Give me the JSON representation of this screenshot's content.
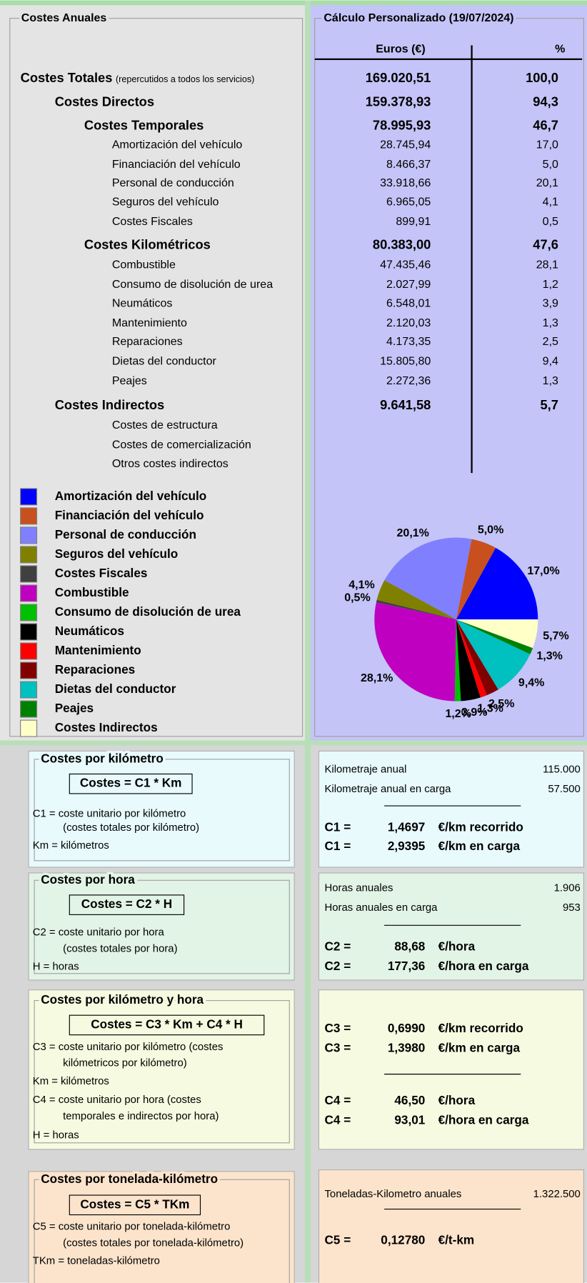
{
  "left_header": "Costes Anuales",
  "right_header": "Cálculo Personalizado (19/07/2024)",
  "table": {
    "columns": [
      "Euros (€)",
      "%"
    ],
    "rows": [
      {
        "label": "Costes Totales",
        "note": "(repercutidos a todos los servicios)",
        "euros": "169.020,51",
        "pct": "100,0"
      },
      {
        "label": "Costes Directos",
        "euros": "159.378,93",
        "pct": "94,3"
      },
      {
        "label": "Costes Temporales",
        "euros": "78.995,93",
        "pct": "46,7"
      },
      {
        "label": "Amortización del vehículo",
        "euros": "28.745,94",
        "pct": "17,0"
      },
      {
        "label": "Financiación del vehículo",
        "euros": "8.466,37",
        "pct": "5,0"
      },
      {
        "label": "Personal de conducción",
        "euros": "33.918,66",
        "pct": "20,1"
      },
      {
        "label": "Seguros del vehículo",
        "euros": "6.965,05",
        "pct": "4,1"
      },
      {
        "label": "Costes Fiscales",
        "euros": "899,91",
        "pct": "0,5"
      },
      {
        "label": "Costes Kilométricos",
        "euros": "80.383,00",
        "pct": "47,6"
      },
      {
        "label": "Combustible",
        "euros": "47.435,46",
        "pct": "28,1"
      },
      {
        "label": "Consumo de disolución de urea",
        "euros": "2.027,99",
        "pct": "1,2"
      },
      {
        "label": "Neumáticos",
        "euros": "6.548,01",
        "pct": "3,9"
      },
      {
        "label": "Mantenimiento",
        "euros": "2.120,03",
        "pct": "1,3"
      },
      {
        "label": "Reparaciones",
        "euros": "4.173,35",
        "pct": "2,5"
      },
      {
        "label": "Dietas del conductor",
        "euros": "15.805,80",
        "pct": "9,4"
      },
      {
        "label": "Peajes",
        "euros": "2.272,36",
        "pct": "1,3"
      },
      {
        "label": "Costes Indirectos",
        "euros": "9.641,58",
        "pct": "5,7"
      },
      {
        "label": "Costes de estructura"
      },
      {
        "label": "Costes de comercialización"
      },
      {
        "label": "Otros costes indirectos"
      }
    ]
  },
  "chart_data": {
    "type": "pie",
    "categories": [
      "Amortización del vehículo",
      "Financiación del vehículo",
      "Personal de conducción",
      "Seguros del vehículo",
      "Costes Fiscales",
      "Combustible",
      "Consumo de disolución de urea",
      "Neumáticos",
      "Mantenimiento",
      "Reparaciones",
      "Dietas del conductor",
      "Peajes",
      "Costes Indirectos"
    ],
    "values": [
      17.0,
      5.0,
      20.1,
      4.1,
      0.5,
      28.1,
      1.2,
      3.9,
      1.3,
      2.5,
      9.4,
      1.3,
      5.7
    ],
    "value_labels": [
      "17,0%",
      "5,0%",
      "20,1%",
      "4,1%",
      "0,5%",
      "28,1%",
      "1,2%",
      "3,9%",
      "1,3%",
      "2,5%",
      "9,4%",
      "1,3%",
      "5,7%"
    ],
    "colors": [
      "#0000ff",
      "#c8501e",
      "#8080ff",
      "#808000",
      "#404040",
      "#c000c0",
      "#00c000",
      "#000000",
      "#ff0000",
      "#800000",
      "#00c0c0",
      "#008000",
      "#ffffc8"
    ]
  },
  "sections": [
    {
      "title": "Costes por kilómetro",
      "formula": "Costes = C1 * Km",
      "notes": [
        "C1 = coste unitario por kilómetro",
        "(costes totales por kilómetro)",
        "Km = kilómetros"
      ],
      "inputs": [
        {
          "label": "Kilometraje anual",
          "value": "115.000"
        },
        {
          "label": "Kilometraje anual en carga",
          "value": "57.500"
        }
      ],
      "results": [
        {
          "symbol": "C1 =",
          "value": "1,4697",
          "unit": "€/km recorrido"
        },
        {
          "symbol": "C1 =",
          "value": "2,9395",
          "unit": "€/km en carga"
        }
      ]
    },
    {
      "title": "Costes por hora",
      "formula": "Costes = C2 * H",
      "notes": [
        "C2 = coste unitario por hora",
        "(costes totales por hora)",
        "H = horas"
      ],
      "inputs": [
        {
          "label": "Horas anuales",
          "value": "1.906"
        },
        {
          "label": "Horas anuales en carga",
          "value": "953"
        }
      ],
      "results": [
        {
          "symbol": "C2 =",
          "value": "88,68",
          "unit": "€/hora"
        },
        {
          "symbol": "C2 =",
          "value": "177,36",
          "unit": "€/hora en carga"
        }
      ]
    },
    {
      "title": "Costes por kilómetro y hora",
      "formula": "Costes = C3 * Km + C4 * H",
      "notes": [
        "C3 =  coste unitario por kilómetro (costes",
        "kilómetricos por kilómetro)",
        "Km = kilómetros",
        "C4 =  coste unitario por hora (costes",
        "temporales e indirectos por hora)",
        "H = horas"
      ],
      "results": [
        {
          "symbol": "C3 =",
          "value": "0,6990",
          "unit": "€/km recorrido"
        },
        {
          "symbol": "C3 =",
          "value": "1,3980",
          "unit": "€/km en carga"
        },
        {
          "symbol": "C4 =",
          "value": "46,50",
          "unit": "€/hora"
        },
        {
          "symbol": "C4 =",
          "value": "93,01",
          "unit": "€/hora en carga"
        }
      ]
    },
    {
      "title": "Costes por tonelada-kilómetro",
      "formula": "Costes = C5 * TKm",
      "notes": [
        "C5 = coste unitario por tonelada-kilómetro",
        "(costes totales por tonelada-kilómetro)",
        "TKm = toneladas-kilómetro"
      ],
      "inputs": [
        {
          "label": "Toneladas-Kilometro anuales",
          "value": "1.322.500"
        }
      ],
      "results": [
        {
          "symbol": "C5 =",
          "value": "0,12780",
          "unit": "€/t-km"
        }
      ]
    }
  ]
}
